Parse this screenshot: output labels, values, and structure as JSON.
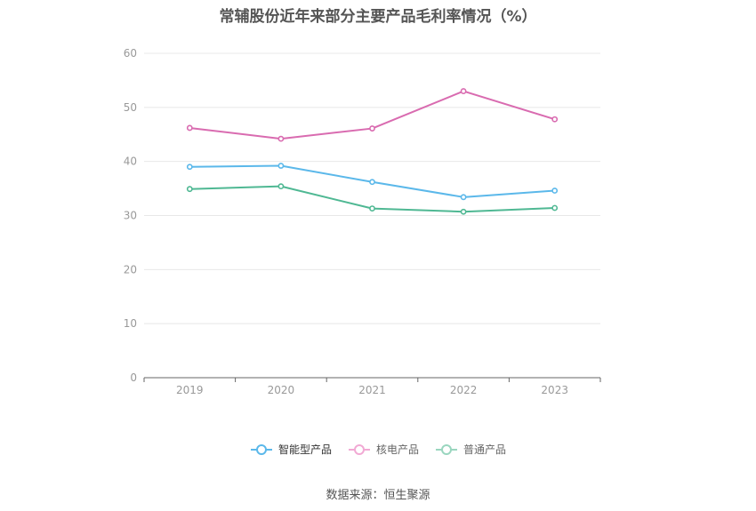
{
  "chart_data": {
    "type": "line",
    "title": "常辅股份近年来部分主要产品毛利率情况（%）",
    "categories": [
      "2019",
      "2020",
      "2021",
      "2022",
      "2023"
    ],
    "series": [
      {
        "name": "智能型产品",
        "color": "#5bb8ea",
        "values": [
          39.0,
          39.2,
          36.2,
          33.4,
          34.6
        ]
      },
      {
        "name": "核电产品",
        "color": "#d96bb0",
        "values": [
          46.2,
          44.2,
          46.1,
          53.0,
          47.8
        ]
      },
      {
        "name": "普通产品",
        "color": "#4fb893",
        "values": [
          34.9,
          35.4,
          31.3,
          30.7,
          31.4
        ]
      }
    ],
    "ylim": [
      0,
      60
    ],
    "yticks": [
      0,
      10,
      20,
      30,
      40,
      50,
      60
    ],
    "xlabel": "",
    "ylabel": "",
    "grid": true,
    "legend_position": "bottom"
  },
  "source": "数据来源：恒生聚源"
}
